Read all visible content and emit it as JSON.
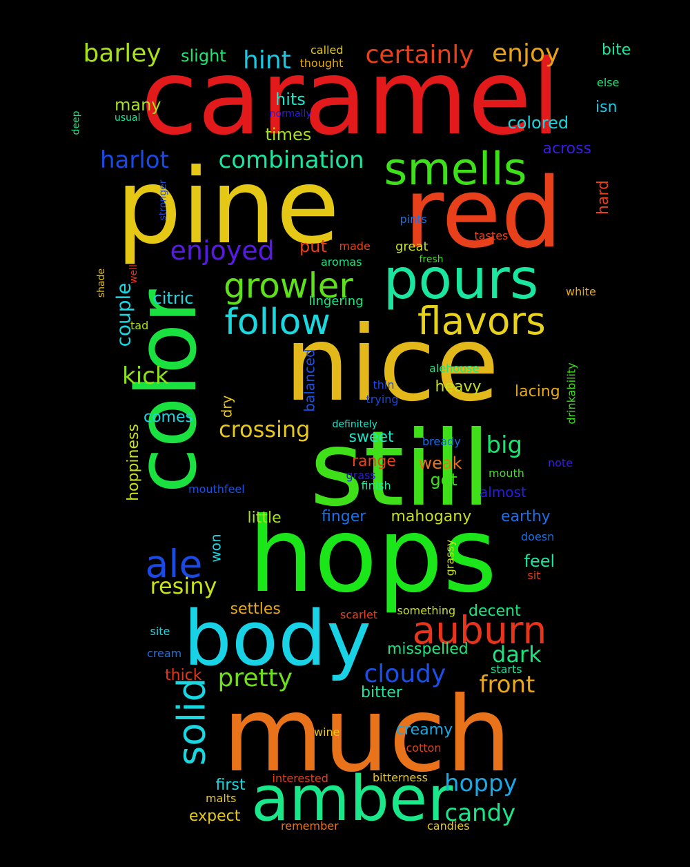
{
  "background": "#000000",
  "words": [
    {
      "text": "caramel",
      "color": "#e31a1c"
    },
    {
      "text": "pine",
      "color": "#e5c815"
    },
    {
      "text": "red",
      "color": "#e8401a"
    },
    {
      "text": "nice",
      "color": "#e3b81a"
    },
    {
      "text": "still",
      "color": "#3fe01a"
    },
    {
      "text": "hops",
      "color": "#1ae61a"
    },
    {
      "text": "color",
      "color": "#1ae040"
    },
    {
      "text": "much",
      "color": "#e8731a"
    },
    {
      "text": "body",
      "color": "#1ad2e6"
    },
    {
      "text": "amber",
      "color": "#1ae68a"
    },
    {
      "text": "pours",
      "color": "#1ae6a0"
    },
    {
      "text": "smells",
      "color": "#3ee01a"
    },
    {
      "text": "growler",
      "color": "#5ee01a"
    },
    {
      "text": "flavors",
      "color": "#e8d21a"
    },
    {
      "text": "follow",
      "color": "#1ad8e0"
    },
    {
      "text": "auburn",
      "color": "#e8341a"
    },
    {
      "text": "solid",
      "color": "#1ad6e0"
    },
    {
      "text": "barley",
      "color": "#a8e01a"
    },
    {
      "text": "certainly",
      "color": "#e8401a"
    },
    {
      "text": "enjoy",
      "color": "#e8a21a"
    },
    {
      "text": "hint",
      "color": "#1ac8e6"
    },
    {
      "text": "enjoyed",
      "color": "#5a1ae6"
    },
    {
      "text": "combination",
      "color": "#1ae6a0"
    },
    {
      "text": "harlot",
      "color": "#1a4ae6"
    },
    {
      "text": "ale",
      "color": "#1a4ae6"
    },
    {
      "text": "kick",
      "color": "#8ee01a"
    },
    {
      "text": "resiny",
      "color": "#c8e01a"
    },
    {
      "text": "crossing",
      "color": "#e8c81a"
    },
    {
      "text": "pretty",
      "color": "#6ee01a"
    },
    {
      "text": "cloudy",
      "color": "#1a50e6"
    },
    {
      "text": "front",
      "color": "#e8a81a"
    },
    {
      "text": "dark",
      "color": "#1ae680"
    },
    {
      "text": "hoppy",
      "color": "#1aa8e6"
    },
    {
      "text": "candy",
      "color": "#1ae68a"
    },
    {
      "text": "big",
      "color": "#1ae670"
    },
    {
      "text": "couple",
      "color": "#1ad6e0"
    },
    {
      "text": "slight",
      "color": "#1ae670"
    },
    {
      "text": "called",
      "color": "#e8c81a"
    },
    {
      "text": "thought",
      "color": "#e8a81a"
    },
    {
      "text": "bite",
      "color": "#1ae6a0"
    },
    {
      "text": "else",
      "color": "#1ae670"
    },
    {
      "text": "isn",
      "color": "#1ac8e6"
    },
    {
      "text": "colored",
      "color": "#1ad6e0"
    },
    {
      "text": "across",
      "color": "#3a1ae6"
    },
    {
      "text": "many",
      "color": "#a8e01a"
    },
    {
      "text": "hits",
      "color": "#1ae6c8"
    },
    {
      "text": "times",
      "color": "#a8e01a"
    },
    {
      "text": "normally",
      "color": "#2a1ae6"
    },
    {
      "text": "usual",
      "color": "#1ae6a0"
    },
    {
      "text": "deep",
      "color": "#1ae680"
    },
    {
      "text": "stronger",
      "color": "#1a4ae6"
    },
    {
      "text": "hard",
      "color": "#e8401a"
    },
    {
      "text": "tastes",
      "color": "#e8401a"
    },
    {
      "text": "pints",
      "color": "#1a70e6"
    },
    {
      "text": "put",
      "color": "#e8401a"
    },
    {
      "text": "made",
      "color": "#e8401a"
    },
    {
      "text": "great",
      "color": "#c8e01a"
    },
    {
      "text": "fresh",
      "color": "#3ee01a"
    },
    {
      "text": "aromas",
      "color": "#1ae680"
    },
    {
      "text": "shade",
      "color": "#e8c81a"
    },
    {
      "text": "well",
      "color": "#e8341a"
    },
    {
      "text": "citric",
      "color": "#1ad6e0"
    },
    {
      "text": "lingering",
      "color": "#1ae680"
    },
    {
      "text": "white",
      "color": "#e8a81a"
    },
    {
      "text": "tad",
      "color": "#a8e01a"
    },
    {
      "text": "balanced",
      "color": "#1a50e6"
    },
    {
      "text": "drinkability",
      "color": "#3ee01a"
    },
    {
      "text": "alehouse",
      "color": "#1ae680"
    },
    {
      "text": "thin",
      "color": "#1a4ae6"
    },
    {
      "text": "trying",
      "color": "#1a4ae6"
    },
    {
      "text": "heavy",
      "color": "#c8e01a"
    },
    {
      "text": "lacing",
      "color": "#e8a81a"
    },
    {
      "text": "dry",
      "color": "#e8c81a"
    },
    {
      "text": "comes",
      "color": "#1ad6e0"
    },
    {
      "text": "definitely",
      "color": "#1ae6c8"
    },
    {
      "text": "hoppiness",
      "color": "#c8e01a"
    },
    {
      "text": "bready",
      "color": "#1a70e6"
    },
    {
      "text": "sweet",
      "color": "#1ae6c8"
    },
    {
      "text": "range",
      "color": "#e8401a"
    },
    {
      "text": "weak",
      "color": "#e8731a"
    },
    {
      "text": "note",
      "color": "#3a1ae6"
    },
    {
      "text": "grass",
      "color": "#2a1ae6"
    },
    {
      "text": "got",
      "color": "#3ee01a"
    },
    {
      "text": "mouth",
      "color": "#3ee01a"
    },
    {
      "text": "finish",
      "color": "#1ae6a0"
    },
    {
      "text": "mouthfeel",
      "color": "#1a50e6"
    },
    {
      "text": "almost",
      "color": "#2a1ae6"
    },
    {
      "text": "little",
      "color": "#a8e01a"
    },
    {
      "text": "finger",
      "color": "#1a70e6"
    },
    {
      "text": "mahogany",
      "color": "#c8e01a"
    },
    {
      "text": "earthy",
      "color": "#1a70e6"
    },
    {
      "text": "doesn",
      "color": "#1a70e6"
    },
    {
      "text": "won",
      "color": "#1ad6e0"
    },
    {
      "text": "grassy",
      "color": "#c8e01a"
    },
    {
      "text": "feel",
      "color": "#1ae6a0"
    },
    {
      "text": "sit",
      "color": "#e8401a"
    },
    {
      "text": "settles",
      "color": "#e8a81a"
    },
    {
      "text": "decent",
      "color": "#1ae680"
    },
    {
      "text": "scarlet",
      "color": "#e8401a"
    },
    {
      "text": "something",
      "color": "#c8e01a"
    },
    {
      "text": "site",
      "color": "#1ad6e0"
    },
    {
      "text": "misspelled",
      "color": "#1ae680"
    },
    {
      "text": "cream",
      "color": "#1a70e6"
    },
    {
      "text": "starts",
      "color": "#1ae6a0"
    },
    {
      "text": "thick",
      "color": "#e8341a"
    },
    {
      "text": "bitter",
      "color": "#1ae6a0"
    },
    {
      "text": "creamy",
      "color": "#1aa8e6"
    },
    {
      "text": "wine",
      "color": "#e8c81a"
    },
    {
      "text": "cotton",
      "color": "#e8401a"
    },
    {
      "text": "first",
      "color": "#1ad6e0"
    },
    {
      "text": "interested",
      "color": "#e8401a"
    },
    {
      "text": "bitterness",
      "color": "#e8c81a"
    },
    {
      "text": "malts",
      "color": "#e8c81a"
    },
    {
      "text": "expect",
      "color": "#e8c81a"
    },
    {
      "text": "remember",
      "color": "#e8731a"
    },
    {
      "text": "candies",
      "color": "#e8c81a"
    }
  ]
}
